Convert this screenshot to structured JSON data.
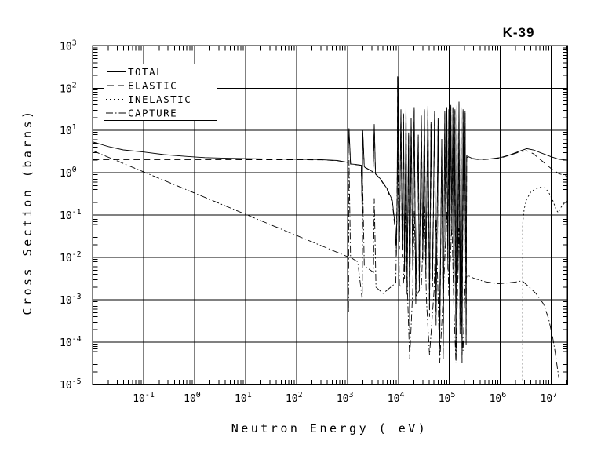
{
  "chart_data": {
    "type": "line",
    "title": "K-39",
    "xlabel": "Neutron Energy ( eV)",
    "ylabel": "Cross Section (barns)",
    "x_scale": "log",
    "y_scale": "log",
    "x_unit": "eV",
    "y_unit": "barns",
    "xlim_log10": [
      -2,
      7.32
    ],
    "ylim_log10": [
      -5,
      3
    ],
    "x_tick_exponents": [
      -1,
      0,
      1,
      2,
      3,
      4,
      5,
      6,
      7
    ],
    "y_tick_exponents": [
      3,
      2,
      1,
      0,
      -1,
      -2,
      -3,
      -4,
      -5
    ],
    "grid": true,
    "legend_position": "top-left",
    "background": "#ffffff",
    "line_color": "#000000",
    "series": [
      {
        "name": "TOTAL",
        "line_style": "solid",
        "points_log10": [
          [
            -2,
            0.73
          ],
          [
            -1.7,
            0.62
          ],
          [
            -1.4,
            0.54
          ],
          [
            -1,
            0.49
          ],
          [
            -0.6,
            0.43
          ],
          [
            -0.2,
            0.39
          ],
          [
            0.2,
            0.36
          ],
          [
            0.6,
            0.345
          ],
          [
            1,
            0.335
          ],
          [
            1.5,
            0.325
          ],
          [
            2,
            0.32
          ],
          [
            2.4,
            0.315
          ],
          [
            2.8,
            0.29
          ],
          [
            2.95,
            0.26
          ],
          [
            3.01,
            0.24
          ],
          [
            3.03,
            1.05
          ],
          [
            3.06,
            0.21
          ],
          [
            3.15,
            0.2
          ],
          [
            3.27,
            0.18
          ],
          [
            3.29,
            -0.9
          ],
          [
            3.3,
            1.0
          ],
          [
            3.33,
            0.14
          ],
          [
            3.42,
            0.08
          ],
          [
            3.5,
            0.02
          ],
          [
            3.51,
            0.3
          ],
          [
            3.525,
            1.15
          ],
          [
            3.55,
            -0.02
          ],
          [
            3.65,
            -0.15
          ],
          [
            3.78,
            -0.38
          ],
          [
            3.88,
            -0.65
          ],
          [
            3.94,
            -1.3
          ],
          [
            3.96,
            -1.8
          ],
          [
            3.975,
            -0.6
          ],
          [
            3.985,
            2.28
          ],
          [
            4.0,
            0.1
          ],
          [
            4.02,
            -1.6
          ],
          [
            4.05,
            1.5
          ],
          [
            4.075,
            -1.8
          ],
          [
            4.1,
            1.4
          ],
          [
            4.12,
            -2.3
          ],
          [
            4.15,
            1.62
          ],
          [
            4.17,
            -2.7
          ],
          [
            4.2,
            0.95
          ],
          [
            4.22,
            -3.5
          ],
          [
            4.25,
            1.3
          ],
          [
            4.28,
            -2.1
          ],
          [
            4.31,
            1.55
          ],
          [
            4.34,
            -2.9
          ],
          [
            4.39,
            0.9
          ],
          [
            4.41,
            -2.6
          ],
          [
            4.45,
            1.35
          ],
          [
            4.48,
            -1.9
          ],
          [
            4.51,
            1.5
          ],
          [
            4.54,
            -2.3
          ],
          [
            4.58,
            1.58
          ],
          [
            4.61,
            -3.1
          ],
          [
            4.64,
            1.2
          ],
          [
            4.67,
            -2.5
          ],
          [
            4.71,
            1.45
          ],
          [
            4.74,
            -3.3
          ],
          [
            4.78,
            1.3
          ],
          [
            4.81,
            -4.05
          ],
          [
            4.85,
            0.8
          ],
          [
            4.88,
            -4.1
          ],
          [
            4.91,
            1.45
          ],
          [
            4.93,
            -1.6
          ],
          [
            4.95,
            1.55
          ],
          [
            4.97,
            -2.1
          ],
          [
            4.99,
            1.5
          ],
          [
            5.01,
            -2.6
          ],
          [
            5.03,
            1.6
          ],
          [
            5.05,
            -1.3
          ],
          [
            5.07,
            1.55
          ],
          [
            5.09,
            -3.1
          ],
          [
            5.11,
            1.5
          ],
          [
            5.13,
            -4.2
          ],
          [
            5.15,
            1.6
          ],
          [
            5.17,
            -2.3
          ],
          [
            5.19,
            1.68
          ],
          [
            5.21,
            -3.6
          ],
          [
            5.23,
            1.55
          ],
          [
            5.25,
            -4.3
          ],
          [
            5.27,
            1.5
          ],
          [
            5.29,
            -2.1
          ],
          [
            5.31,
            1.45
          ],
          [
            5.33,
            -3.9
          ],
          [
            5.34,
            0.4
          ],
          [
            5.45,
            0.34
          ],
          [
            5.6,
            0.32
          ],
          [
            5.8,
            0.33
          ],
          [
            6.0,
            0.36
          ],
          [
            6.2,
            0.43
          ],
          [
            6.4,
            0.52
          ],
          [
            6.52,
            0.57
          ],
          [
            6.65,
            0.54
          ],
          [
            6.8,
            0.47
          ],
          [
            7.0,
            0.38
          ],
          [
            7.15,
            0.32
          ],
          [
            7.32,
            0.3
          ]
        ]
      },
      {
        "name": "ELASTIC",
        "line_style": "long-dash",
        "points_log10": [
          [
            -2,
            0.312
          ],
          [
            -1,
            0.312
          ],
          [
            0,
            0.312
          ],
          [
            1,
            0.31
          ],
          [
            2,
            0.31
          ],
          [
            2.5,
            0.305
          ],
          [
            2.8,
            0.285
          ],
          [
            2.95,
            0.255
          ],
          [
            3.01,
            0.235
          ],
          [
            3.03,
            1.0
          ],
          [
            3.06,
            0.205
          ],
          [
            3.15,
            0.195
          ],
          [
            3.27,
            0.175
          ],
          [
            3.29,
            -1.0
          ],
          [
            3.3,
            0.95
          ],
          [
            3.33,
            0.135
          ],
          [
            3.42,
            0.075
          ],
          [
            3.5,
            0.015
          ],
          [
            3.51,
            0.28
          ],
          [
            3.525,
            1.1
          ],
          [
            3.55,
            -0.03
          ],
          [
            3.65,
            -0.16
          ],
          [
            3.78,
            -0.4
          ],
          [
            3.88,
            -0.7
          ],
          [
            3.94,
            -1.4
          ],
          [
            3.96,
            -2.0
          ],
          [
            3.975,
            -0.7
          ],
          [
            3.985,
            2.26
          ],
          [
            4.0,
            0.05
          ],
          [
            4.02,
            -1.8
          ],
          [
            4.05,
            1.47
          ],
          [
            4.075,
            -2.0
          ],
          [
            4.1,
            1.37
          ],
          [
            4.12,
            -2.5
          ],
          [
            4.15,
            1.58
          ],
          [
            4.17,
            -2.9
          ],
          [
            4.2,
            0.9
          ],
          [
            4.22,
            -3.8
          ],
          [
            4.25,
            1.27
          ],
          [
            4.28,
            -2.3
          ],
          [
            4.31,
            1.52
          ],
          [
            4.34,
            -3.1
          ],
          [
            4.39,
            0.85
          ],
          [
            4.41,
            -2.8
          ],
          [
            4.45,
            1.3
          ],
          [
            4.48,
            -2.1
          ],
          [
            4.51,
            1.47
          ],
          [
            4.54,
            -2.5
          ],
          [
            4.58,
            1.54
          ],
          [
            4.61,
            -3.4
          ],
          [
            4.64,
            1.15
          ],
          [
            4.67,
            -2.7
          ],
          [
            4.71,
            1.4
          ],
          [
            4.74,
            -3.6
          ],
          [
            4.78,
            1.25
          ],
          [
            4.81,
            -4.3
          ],
          [
            4.85,
            0.75
          ],
          [
            4.88,
            -4.4
          ],
          [
            4.91,
            1.42
          ],
          [
            4.93,
            -1.8
          ],
          [
            4.95,
            1.52
          ],
          [
            4.97,
            -2.3
          ],
          [
            4.99,
            1.47
          ],
          [
            5.01,
            -2.8
          ],
          [
            5.03,
            1.57
          ],
          [
            5.05,
            -1.5
          ],
          [
            5.07,
            1.52
          ],
          [
            5.09,
            -3.3
          ],
          [
            5.11,
            1.47
          ],
          [
            5.13,
            -4.4
          ],
          [
            5.15,
            1.57
          ],
          [
            5.17,
            -2.5
          ],
          [
            5.19,
            1.64
          ],
          [
            5.21,
            -3.8
          ],
          [
            5.23,
            1.52
          ],
          [
            5.25,
            -4.5
          ],
          [
            5.27,
            1.47
          ],
          [
            5.29,
            -2.3
          ],
          [
            5.31,
            1.42
          ],
          [
            5.33,
            -4.1
          ],
          [
            5.34,
            0.37
          ],
          [
            5.45,
            0.33
          ],
          [
            5.6,
            0.31
          ],
          [
            5.8,
            0.32
          ],
          [
            6.0,
            0.35
          ],
          [
            6.2,
            0.42
          ],
          [
            6.4,
            0.5
          ],
          [
            6.52,
            0.52
          ],
          [
            6.65,
            0.45
          ],
          [
            6.8,
            0.3
          ],
          [
            7.0,
            0.1
          ],
          [
            7.15,
            -0.02
          ],
          [
            7.32,
            -0.08
          ]
        ]
      },
      {
        "name": "INELASTIC",
        "line_style": "short-dash",
        "points_log10": [
          [
            6.44,
            -4.9
          ],
          [
            6.44,
            -1.2
          ],
          [
            6.47,
            -0.85
          ],
          [
            6.52,
            -0.62
          ],
          [
            6.6,
            -0.45
          ],
          [
            6.7,
            -0.37
          ],
          [
            6.8,
            -0.34
          ],
          [
            6.88,
            -0.36
          ],
          [
            6.95,
            -0.46
          ],
          [
            7.03,
            -0.65
          ],
          [
            7.1,
            -0.88
          ],
          [
            7.14,
            -0.94
          ],
          [
            7.2,
            -0.8
          ],
          [
            7.27,
            -0.7
          ],
          [
            7.32,
            -0.67
          ]
        ]
      },
      {
        "name": "CAPTURE",
        "line_style": "dash-dot",
        "points_log10": [
          [
            -2,
            0.52
          ],
          [
            -1.5,
            0.27
          ],
          [
            -1,
            0.02
          ],
          [
            -0.5,
            -0.23
          ],
          [
            0,
            -0.48
          ],
          [
            0.5,
            -0.73
          ],
          [
            1,
            -0.98
          ],
          [
            1.5,
            -1.23
          ],
          [
            2,
            -1.48
          ],
          [
            2.5,
            -1.73
          ],
          [
            2.9,
            -1.93
          ],
          [
            3.0,
            -1.98
          ],
          [
            3.02,
            -3.3
          ],
          [
            3.03,
            0.3
          ],
          [
            3.06,
            -2.0
          ],
          [
            3.2,
            -2.1
          ],
          [
            3.29,
            -3.0
          ],
          [
            3.3,
            -0.3
          ],
          [
            3.33,
            -2.2
          ],
          [
            3.45,
            -2.3
          ],
          [
            3.51,
            -2.35
          ],
          [
            3.525,
            -0.6
          ],
          [
            3.56,
            -2.7
          ],
          [
            3.7,
            -2.85
          ],
          [
            3.85,
            -2.7
          ],
          [
            3.95,
            -2.6
          ],
          [
            3.985,
            0.5
          ],
          [
            4.02,
            -2.7
          ],
          [
            4.1,
            -2.6
          ],
          [
            4.15,
            -0.6
          ],
          [
            4.18,
            -2.9
          ],
          [
            4.22,
            -4.4
          ],
          [
            4.28,
            -2.8
          ],
          [
            4.31,
            -0.9
          ],
          [
            4.35,
            -2.9
          ],
          [
            4.45,
            -2.7
          ],
          [
            4.51,
            -0.8
          ],
          [
            4.55,
            -3.0
          ],
          [
            4.61,
            -4.3
          ],
          [
            4.7,
            -2.8
          ],
          [
            4.74,
            -1.1
          ],
          [
            4.78,
            -3.0
          ],
          [
            4.81,
            -4.5
          ],
          [
            4.88,
            -2.9
          ],
          [
            4.95,
            -0.9
          ],
          [
            4.99,
            -2.9
          ],
          [
            5.05,
            -1.2
          ],
          [
            5.09,
            -3.2
          ],
          [
            5.13,
            -4.5
          ],
          [
            5.19,
            -1.3
          ],
          [
            5.23,
            -3.3
          ],
          [
            5.27,
            -4.2
          ],
          [
            5.31,
            -2.6
          ],
          [
            5.35,
            -2.42
          ],
          [
            5.5,
            -2.5
          ],
          [
            5.7,
            -2.57
          ],
          [
            5.95,
            -2.62
          ],
          [
            6.15,
            -2.6
          ],
          [
            6.3,
            -2.58
          ],
          [
            6.43,
            -2.55
          ],
          [
            6.55,
            -2.68
          ],
          [
            6.7,
            -2.85
          ],
          [
            6.85,
            -3.1
          ],
          [
            6.95,
            -3.45
          ],
          [
            7.03,
            -3.9
          ],
          [
            7.08,
            -4.25
          ],
          [
            7.12,
            -4.6
          ],
          [
            7.15,
            -4.85
          ]
        ]
      }
    ]
  }
}
